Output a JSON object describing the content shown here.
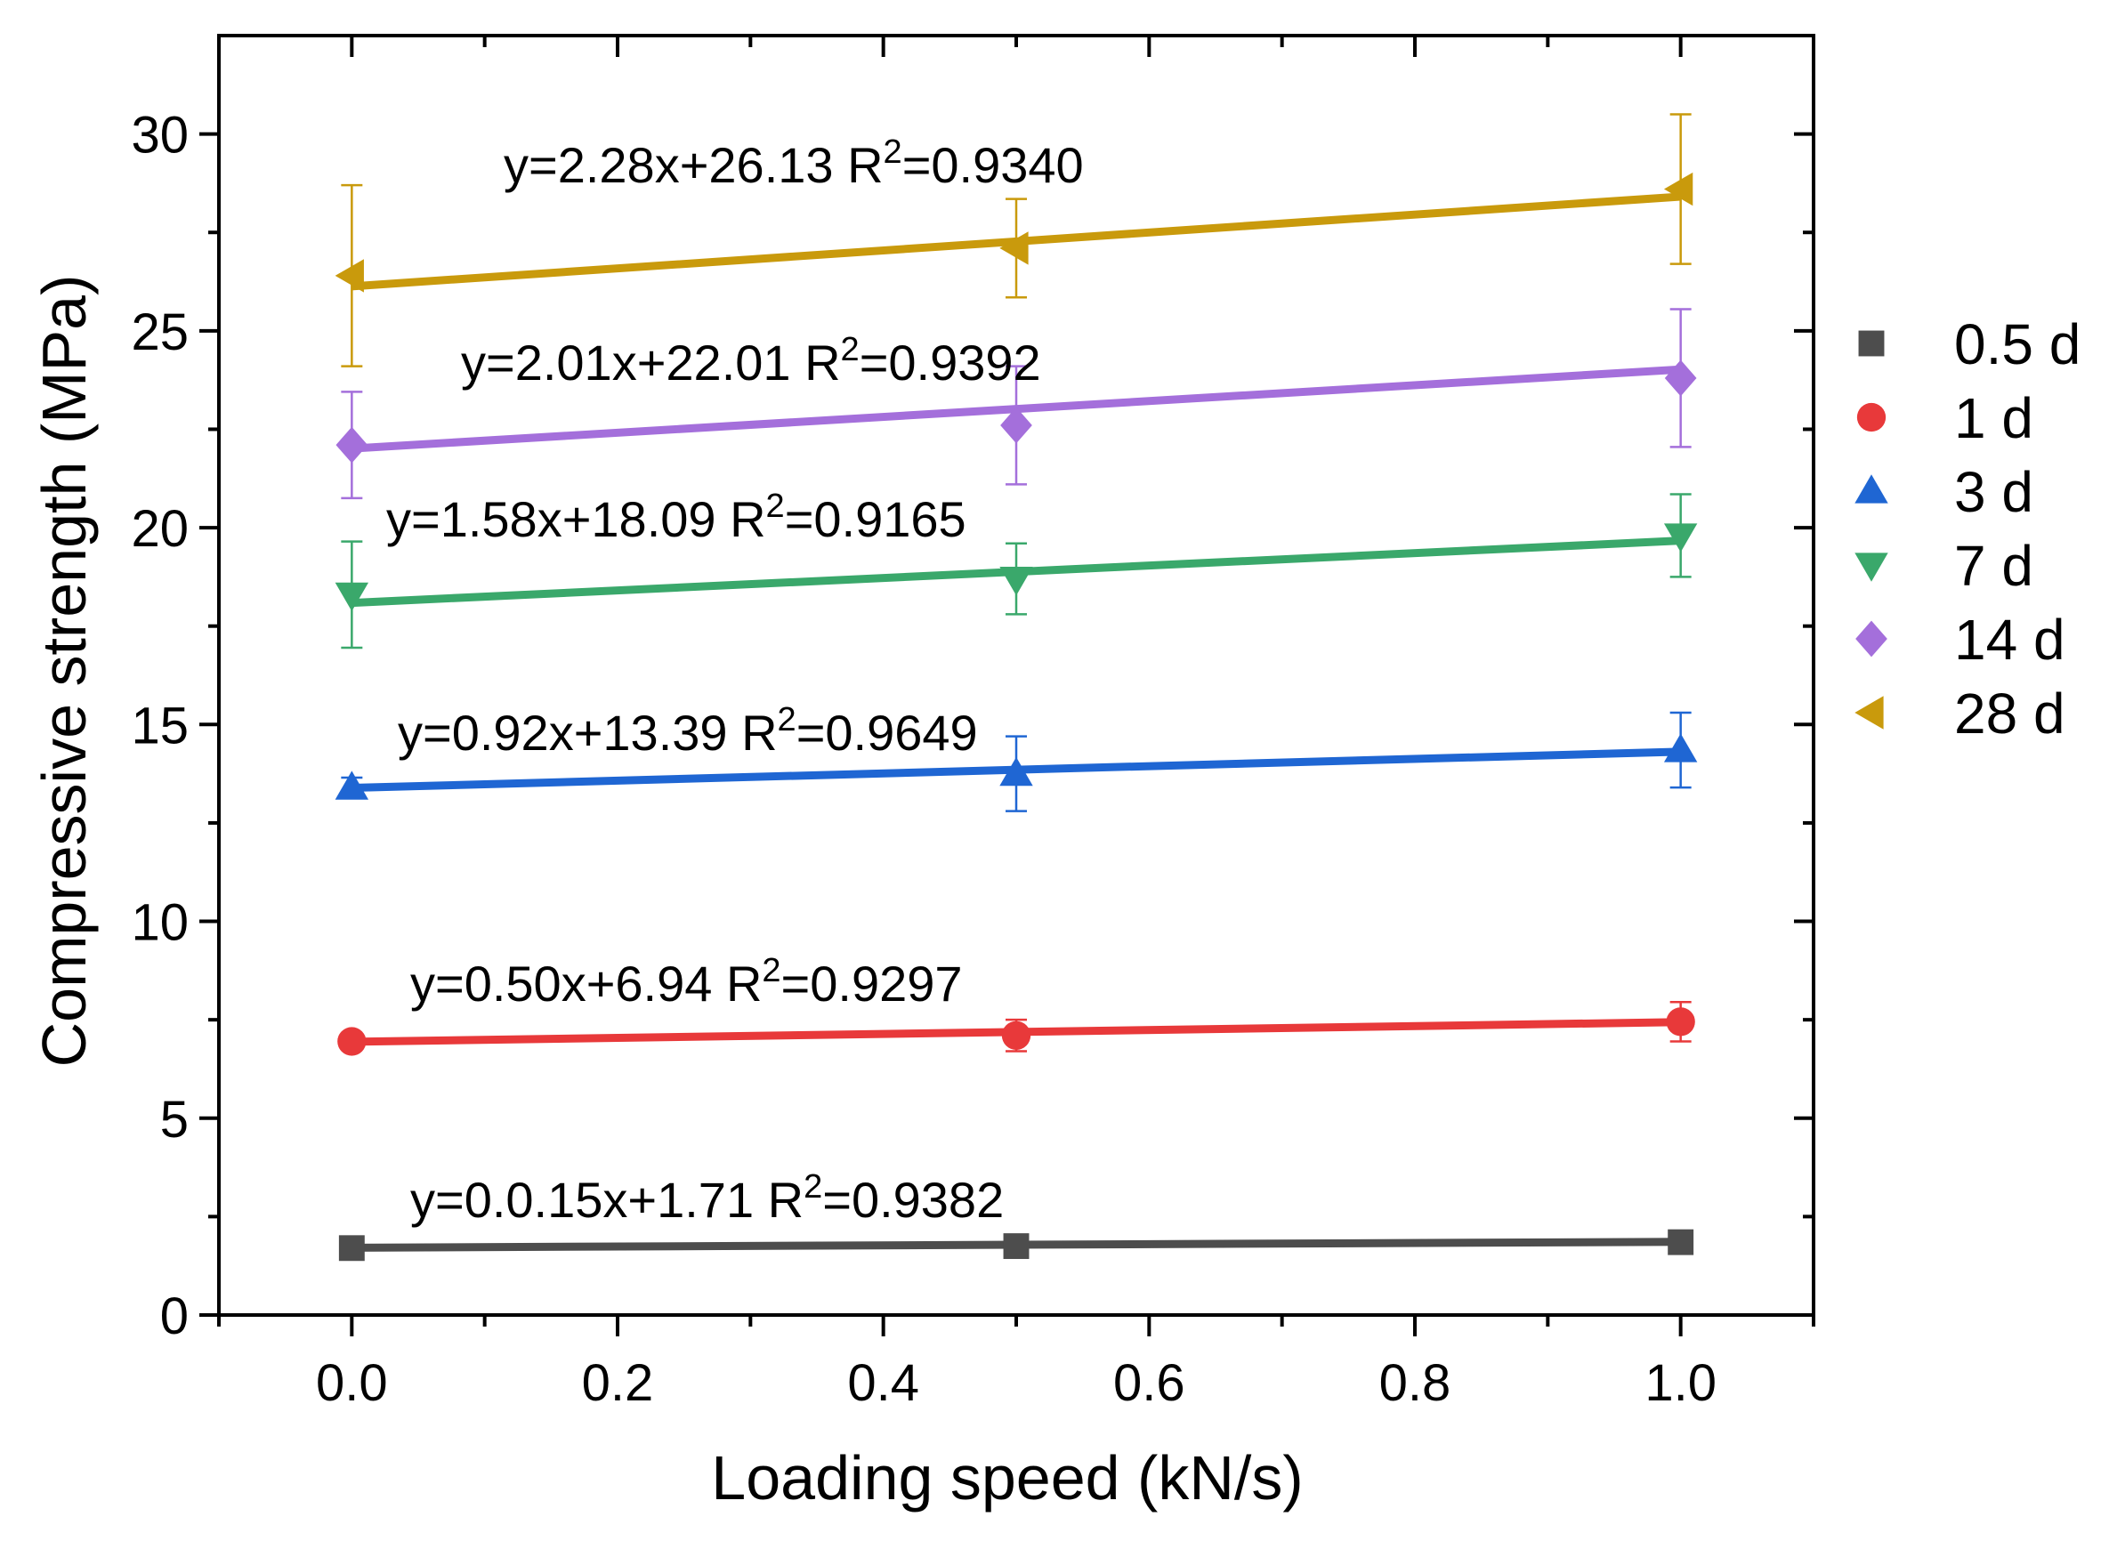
{
  "chart_data": {
    "type": "scatter",
    "xlabel": "Loading speed (kN/s)",
    "ylabel": "Compressive strength (MPa)",
    "xlim": [
      -0.1,
      1.1
    ],
    "ylim": [
      0,
      32.5
    ],
    "xticks": [
      "0.0",
      "0.2",
      "0.4",
      "0.6",
      "0.8",
      "1.0"
    ],
    "yticks": [
      "0",
      "5",
      "10",
      "15",
      "20",
      "25",
      "30"
    ],
    "legend_position": "right",
    "x": [
      0.0,
      0.5,
      1.0
    ],
    "series": [
      {
        "name": "0.5 d",
        "marker": "square",
        "color": "#4d4d4d",
        "values": [
          1.7,
          1.75,
          1.85
        ],
        "errors": [
          0.0,
          0.0,
          0.0
        ],
        "fit": {
          "slope": 0.15,
          "intercept": 1.71
        },
        "equation": {
          "prefix": "y=0.0.15x+1.71 R",
          "sup": "2",
          "suffix": "=0.9382"
        }
      },
      {
        "name": "1 d",
        "marker": "circle",
        "color": "#e8393a",
        "values": [
          6.95,
          7.1,
          7.45
        ],
        "errors": [
          0.15,
          0.4,
          0.5
        ],
        "fit": {
          "slope": 0.5,
          "intercept": 6.94
        },
        "equation": {
          "prefix": "y=0.50x+6.94 R",
          "sup": "2",
          "suffix": "=0.9297"
        }
      },
      {
        "name": "3 d",
        "marker": "triangle-up",
        "color": "#1f66d3",
        "values": [
          13.4,
          13.75,
          14.35
        ],
        "errors": [
          0.25,
          0.95,
          0.95
        ],
        "fit": {
          "slope": 0.92,
          "intercept": 13.39
        },
        "equation": {
          "prefix": "y=0.92x+13.39 R",
          "sup": "2",
          "suffix": "=0.9649"
        }
      },
      {
        "name": "7 d",
        "marker": "triangle-down",
        "color": "#3aa86b",
        "values": [
          18.3,
          18.7,
          19.8
        ],
        "errors": [
          1.35,
          0.9,
          1.05
        ],
        "fit": {
          "slope": 1.58,
          "intercept": 18.09
        },
        "equation": {
          "prefix": "y=1.58x+18.09 R",
          "sup": "2",
          "suffix": "=0.9165"
        }
      },
      {
        "name": "14 d",
        "marker": "diamond",
        "color": "#a46fdb",
        "values": [
          22.1,
          22.6,
          23.8
        ],
        "errors": [
          1.35,
          1.5,
          1.75
        ],
        "fit": {
          "slope": 2.01,
          "intercept": 22.01
        },
        "equation": {
          "prefix": "y=2.01x+22.01 R",
          "sup": "2",
          "suffix": "=0.9392"
        }
      },
      {
        "name": "28 d",
        "marker": "triangle-left",
        "color": "#c99a0c",
        "values": [
          26.4,
          27.1,
          28.6
        ],
        "errors": [
          2.3,
          1.25,
          1.9
        ],
        "fit": {
          "slope": 2.28,
          "intercept": 26.13
        },
        "equation": {
          "prefix": "y=2.28x+26.13 R",
          "sup": "2",
          "suffix": "=0.9340"
        }
      }
    ]
  }
}
